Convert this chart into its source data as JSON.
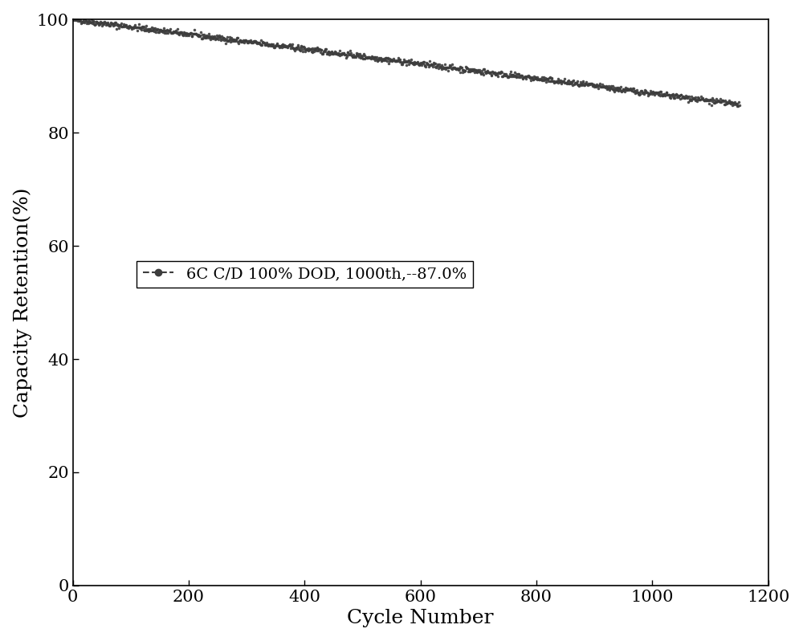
{
  "title": "",
  "xlabel": "Cycle Number",
  "ylabel": "Capacity Retention(%)",
  "xlim": [
    0,
    1200
  ],
  "ylim": [
    0,
    100
  ],
  "xticks": [
    0,
    200,
    400,
    600,
    800,
    1000,
    1200
  ],
  "yticks": [
    0,
    20,
    40,
    60,
    80,
    100
  ],
  "x_start": 1,
  "x_end": 1150,
  "y_start": 100.0,
  "y_end": 85.0,
  "noise_amplitude": 0.25,
  "line_color": "#3d3d3d",
  "marker_color": "#3d3d3d",
  "legend_label": "6C C/D 100% DOD, 1000th,--87.0%",
  "legend_fontsize": 14,
  "axis_fontsize": 18,
  "tick_fontsize": 15,
  "background_color": "#ffffff",
  "num_points": 1150,
  "figsize": [
    10.0,
    7.98
  ],
  "dpi": 100
}
